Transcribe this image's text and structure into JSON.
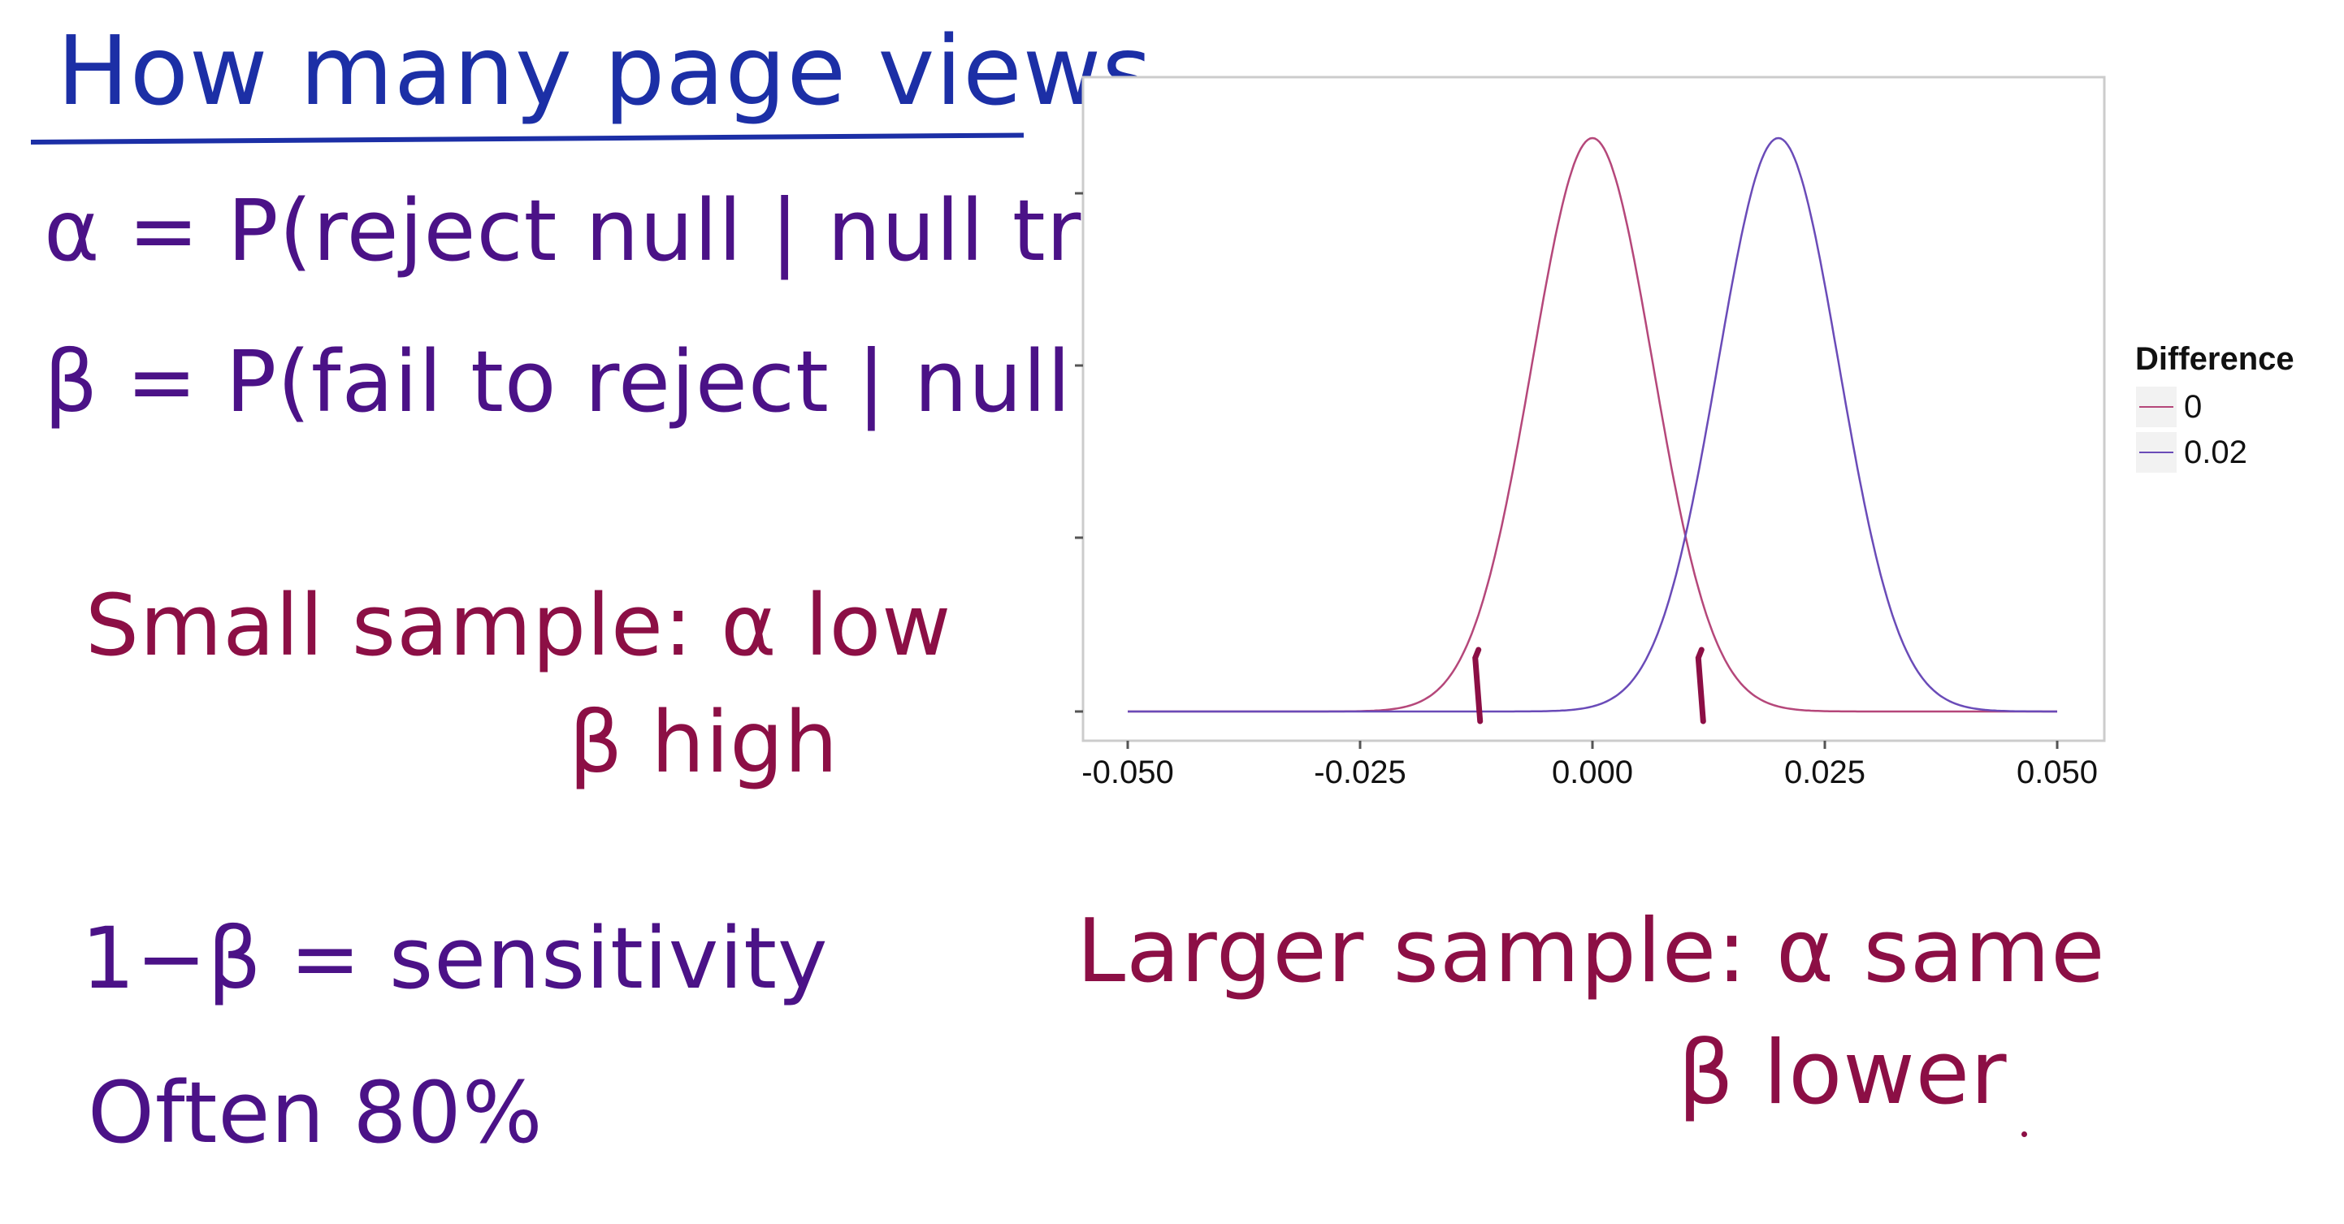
{
  "notes": {
    "title": "How many page views",
    "alpha_def": "α = P(reject null | null true)",
    "beta_def": "β = P(fail to reject | null false)",
    "small_sample_line1": "Small sample: α low",
    "small_sample_line2": "β high",
    "sensitivity": "1−β = sensitivity",
    "often": "Often 80%",
    "larger_sample_line1": "Larger sample: α same",
    "larger_sample_line2": "β lower"
  },
  "colors": {
    "ink_blue": "#1c2fa6",
    "ink_purple": "#4b1287",
    "ink_crimson": "#8c0f45",
    "series_0": "#b5477a",
    "series_002": "#6a4bb8",
    "panel_border": "#cccccc",
    "axis_text": "#111111"
  },
  "chart_data": {
    "type": "line",
    "title": "",
    "xlabel": "",
    "ylabel": "",
    "xlim": [
      -0.05,
      0.05
    ],
    "x_ticks": [
      "-0.050",
      "-0.025",
      "0.000",
      "0.025",
      "0.050"
    ],
    "y_tick_labels_visible": false,
    "grid": false,
    "legend": {
      "title": "Difference",
      "position": "right"
    },
    "series": [
      {
        "name": "0",
        "distribution": "normal",
        "mean": 0.0,
        "sd": 0.0065
      },
      {
        "name": "0.02",
        "distribution": "normal",
        "mean": 0.02,
        "sd": 0.0065
      }
    ],
    "annotations": [
      {
        "type": "critical-value-mark",
        "x": -0.012
      },
      {
        "type": "critical-value-mark",
        "x": 0.012
      }
    ]
  }
}
